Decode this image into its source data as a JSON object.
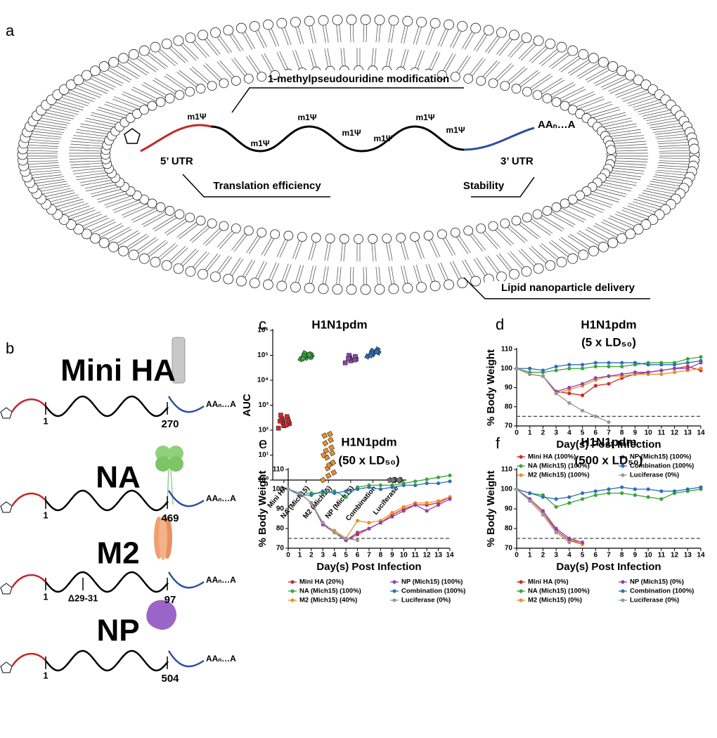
{
  "panel_labels": [
    "a",
    "b",
    "c",
    "d",
    "e",
    "f"
  ],
  "lnp_diagram": {
    "modification": "1-methylpseudouridine modification",
    "modification_sites": [
      "m1Ψ",
      "m1Ψ",
      "m1Ψ",
      "m1Ψ",
      "m1Ψ",
      "m1Ψ",
      "m1Ψ"
    ],
    "five_utr": "5’ UTR",
    "three_utr": "3’ UTR",
    "tail": "AAₙ…A",
    "five_utr_role": "Translation efficiency",
    "three_utr_role": "Stability",
    "delivery": "Lipid nanoparticle delivery"
  },
  "constructs": [
    {
      "name": "Mini HA",
      "start": "1",
      "end": "270",
      "tail": "AAₙ…A"
    },
    {
      "name": "NA",
      "start": "1",
      "end": "469",
      "tail": "AAₙ…A"
    },
    {
      "name": "M2",
      "start": "1",
      "deletion": "Δ29-31",
      "end": "97",
      "tail": "AAₙ…A"
    },
    {
      "name": "NP",
      "start": "1",
      "end": "504",
      "tail": "AAₙ…A"
    }
  ],
  "chart_data": [
    {
      "type": "strip",
      "title": "H1N1pdm",
      "y_label": "AUC",
      "log_y": true,
      "ylim": [
        1,
        1000000
      ],
      "yticks": [
        {
          "value": 1,
          "label": "10⁰"
        },
        {
          "value": 10,
          "label": "10¹"
        },
        {
          "value": 100,
          "label": "10²"
        },
        {
          "value": 1000,
          "label": "10³"
        },
        {
          "value": 10000,
          "label": "10⁴"
        },
        {
          "value": 100000,
          "label": "10⁵"
        },
        {
          "value": 1000000,
          "label": "10⁶"
        }
      ],
      "categories": [
        "Mini HA",
        "NA (Mich15)",
        "M2 (Mich15)",
        "NP (Mich15)",
        "Combination",
        "Luciferase"
      ],
      "colors": [
        "#d62728",
        "#3aa63a",
        "#e8902a",
        "#8e44ad",
        "#2c6fbb",
        "#777777"
      ],
      "values": [
        [
          120,
          150,
          180,
          200,
          220,
          250,
          280,
          300,
          350,
          400,
          160,
          230
        ],
        [
          70000,
          80000,
          90000,
          100000,
          110000,
          120000,
          85000,
          95000,
          105000,
          75000
        ],
        [
          1,
          1.5,
          2,
          3,
          5,
          8,
          12,
          15,
          20,
          30,
          40,
          60,
          70,
          10,
          4
        ],
        [
          50000,
          60000,
          70000,
          80000,
          90000,
          100000,
          65000,
          75000
        ],
        [
          90000,
          110000,
          130000,
          150000,
          170000,
          120000,
          140000,
          100000
        ],
        [
          1,
          1,
          1,
          1,
          1,
          1,
          1,
          1
        ]
      ]
    },
    {
      "type": "line",
      "title": "H1N1pdm",
      "subtitle": "(5 x LD₅₀)",
      "x_label": "Day(s) Post Infection",
      "y_label": "% Body Weight",
      "x": [
        0,
        1,
        2,
        3,
        4,
        5,
        6,
        7,
        8,
        9,
        10,
        11,
        12,
        13,
        14
      ],
      "xlim": [
        0,
        14
      ],
      "xticks": [
        0,
        1,
        2,
        3,
        4,
        5,
        6,
        7,
        8,
        9,
        10,
        11,
        12,
        13,
        14
      ],
      "ylim": [
        70,
        110
      ],
      "yticks": [
        70,
        80,
        90,
        100,
        110
      ],
      "reference_line": 75,
      "series": [
        {
          "name": "Mini HA (100%)",
          "color": "#d62728",
          "values": [
            100,
            97,
            96,
            88,
            87,
            86,
            91,
            92,
            95,
            97,
            98,
            99,
            100,
            101,
            99
          ]
        },
        {
          "name": "NA (Mich15) (100%)",
          "color": "#3aa63a",
          "values": [
            100,
            98,
            98,
            99,
            100,
            100,
            101,
            101,
            101,
            102,
            103,
            103,
            103,
            105,
            106
          ]
        },
        {
          "name": "M2 (Mich15) (100%)",
          "color": "#e8902a",
          "values": [
            100,
            97,
            96,
            87,
            89,
            91,
            94,
            96,
            96,
            97,
            97,
            97,
            98,
            99,
            100
          ]
        },
        {
          "name": "NP (Mich15) (100%)",
          "color": "#8e44ad",
          "values": [
            100,
            97,
            96,
            88,
            90,
            92,
            95,
            96,
            97,
            98,
            98,
            99,
            100,
            100,
            103
          ]
        },
        {
          "name": "Combination (100%)",
          "color": "#2c6fbb",
          "values": [
            100,
            100,
            99,
            101,
            102,
            102,
            103,
            103,
            103,
            103,
            102,
            102,
            102,
            103,
            104
          ]
        },
        {
          "name": "Luciferase (0%)",
          "color": "#999999",
          "values": [
            100,
            97,
            96,
            87,
            82,
            78,
            75,
            72,
            null,
            null,
            null,
            null,
            null,
            null,
            null
          ]
        }
      ]
    },
    {
      "type": "line",
      "title": "H1N1pdm",
      "subtitle": "(50 x LD₅₀)",
      "x_label": "Day(s) Post Infection",
      "y_label": "% Body Weight",
      "x": [
        0,
        1,
        2,
        3,
        4,
        5,
        6,
        7,
        8,
        9,
        10,
        11,
        12,
        13,
        14
      ],
      "xlim": [
        0,
        14
      ],
      "xticks": [
        0,
        1,
        2,
        3,
        4,
        5,
        6,
        7,
        8,
        9,
        10,
        11,
        12,
        13,
        14
      ],
      "ylim": [
        70,
        110
      ],
      "yticks": [
        70,
        80,
        90,
        100,
        110
      ],
      "reference_line": 75,
      "series": [
        {
          "name": "Mini HA (20%)",
          "color": "#d62728",
          "values": [
            100,
            98,
            93,
            83,
            78,
            74,
            77,
            80,
            83,
            87,
            90,
            92,
            92,
            93,
            96
          ]
        },
        {
          "name": "NA (Mich15) (100%)",
          "color": "#3aa63a",
          "values": [
            100,
            98,
            98,
            98,
            99,
            96,
            101,
            102,
            102,
            102,
            103,
            104,
            105,
            106,
            107
          ]
        },
        {
          "name": "M2 (Mich15) (40%)",
          "color": "#e8902a",
          "values": [
            100,
            98,
            93,
            82,
            79,
            75,
            84,
            83,
            84,
            88,
            91,
            93,
            93,
            94,
            96
          ]
        },
        {
          "name": "NP (Mich15) (100%)",
          "color": "#8e44ad",
          "values": [
            100,
            98,
            93,
            82,
            78,
            74,
            78,
            80,
            83,
            86,
            89,
            92,
            89,
            92,
            95
          ]
        },
        {
          "name": "Combination (100%)",
          "color": "#2c6fbb",
          "values": [
            100,
            97,
            97,
            99,
            98,
            99,
            100,
            101,
            100,
            101,
            102,
            102,
            103,
            103,
            104
          ]
        },
        {
          "name": "Luciferase (0%)",
          "color": "#999999",
          "values": [
            100,
            98,
            93,
            83,
            78,
            75,
            74,
            null,
            null,
            null,
            null,
            null,
            null,
            null,
            null
          ]
        }
      ]
    },
    {
      "type": "line",
      "title": "H1N1pdm",
      "subtitle": "(500 x LD₅₀)",
      "x_label": "Day(s) Post Infection",
      "y_label": "% Body Weight",
      "x": [
        0,
        1,
        2,
        3,
        4,
        5,
        6,
        7,
        8,
        9,
        10,
        11,
        12,
        13,
        14
      ],
      "xlim": [
        0,
        14
      ],
      "xticks": [
        0,
        1,
        2,
        3,
        4,
        5,
        6,
        7,
        8,
        9,
        10,
        11,
        12,
        13,
        14
      ],
      "ylim": [
        70,
        110
      ],
      "yticks": [
        70,
        80,
        90,
        100,
        110
      ],
      "reference_line": 75,
      "series": [
        {
          "name": "Mini HA (0%)",
          "color": "#d62728",
          "values": [
            100,
            95,
            88,
            79,
            74,
            72,
            null,
            null,
            null,
            null,
            null,
            null,
            null,
            null,
            null
          ]
        },
        {
          "name": "NA (Mich15) (100%)",
          "color": "#3aa63a",
          "values": [
            100,
            98,
            97,
            91,
            93,
            95,
            97,
            98,
            98,
            97,
            96,
            95,
            98,
            99,
            100
          ]
        },
        {
          "name": "M2 (Mich15) (0%)",
          "color": "#e8902a",
          "values": [
            100,
            95,
            88,
            80,
            75,
            72,
            null,
            null,
            null,
            null,
            null,
            null,
            null,
            null,
            null
          ]
        },
        {
          "name": "NP (Mich15) (0%)",
          "color": "#8e44ad",
          "values": [
            100,
            95,
            89,
            80,
            75,
            73,
            null,
            null,
            null,
            null,
            null,
            null,
            null,
            null,
            null
          ]
        },
        {
          "name": "Combination (100%)",
          "color": "#2c6fbb",
          "values": [
            100,
            98,
            96,
            95,
            96,
            98,
            99,
            100,
            101,
            100,
            100,
            99,
            99,
            100,
            101
          ]
        },
        {
          "name": "Luciferase (0%)",
          "color": "#999999",
          "values": [
            100,
            94,
            87,
            78,
            73,
            null,
            null,
            null,
            null,
            null,
            null,
            null,
            null,
            null,
            null
          ]
        }
      ]
    }
  ]
}
